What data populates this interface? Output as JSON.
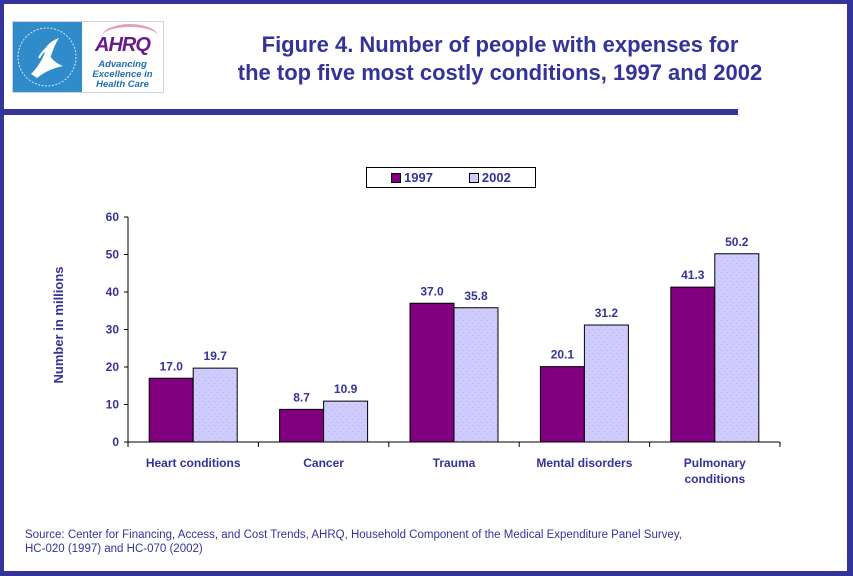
{
  "header": {
    "logo": {
      "hhs_icon": "hhs-eagle-seal-icon",
      "ahrq_name": "AHRQ",
      "ahrq_tagline": [
        "Advancing",
        "Excellence in",
        "Health Care"
      ]
    },
    "title_line1": "Figure 4. Number of people with expenses for",
    "title_line2": "the top five most costly conditions, 1997 and 2002"
  },
  "colors": {
    "frame": "#333399",
    "text": "#333399",
    "series_1997": "#800080",
    "series_2002": "#ccccff"
  },
  "chart_data": {
    "type": "bar",
    "title": "Figure 4. Number of people with expenses for the top five most costly conditions, 1997 and 2002",
    "xlabel": "",
    "ylabel": "Number in millions",
    "ylim": [
      0,
      60
    ],
    "yticks": [
      0,
      10,
      20,
      30,
      40,
      50,
      60
    ],
    "grid": false,
    "legend_position": "top-center",
    "categories": [
      "Heart conditions",
      "Cancer",
      "Trauma",
      "Mental disorders",
      "Pulmonary conditions"
    ],
    "category_lines": [
      [
        "Heart conditions"
      ],
      [
        "Cancer"
      ],
      [
        "Trauma"
      ],
      [
        "Mental disorders"
      ],
      [
        "Pulmonary",
        "conditions"
      ]
    ],
    "series": [
      {
        "name": "1997",
        "values": [
          17.0,
          8.7,
          37.0,
          20.1,
          41.3
        ],
        "labels": [
          "17.0",
          "8.7",
          "37.0",
          "20.1",
          "41.3"
        ]
      },
      {
        "name": "2002",
        "values": [
          19.7,
          10.9,
          35.8,
          31.2,
          50.2
        ],
        "labels": [
          "19.7",
          "10.9",
          "35.8",
          "31.2",
          "50.2"
        ]
      }
    ]
  },
  "footer": {
    "source_line1": "Source: Center for Financing, Access, and Cost Trends, AHRQ, Household Component of the Medical Expenditure Panel Survey,",
    "source_line2": "HC-020 (1997) and HC-070 (2002)"
  }
}
